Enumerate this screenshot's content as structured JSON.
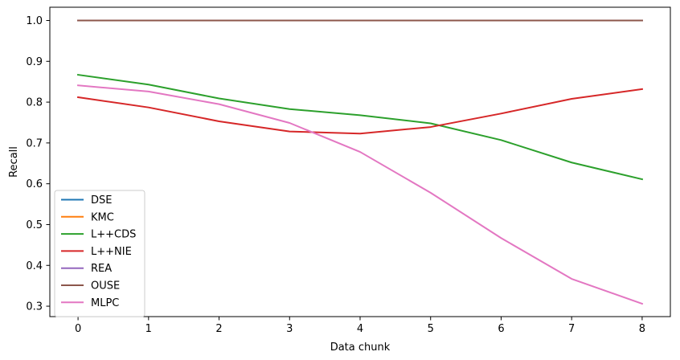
{
  "chart_data": {
    "type": "line",
    "xlabel": "Data chunk",
    "ylabel": "Recall",
    "x": [
      0,
      1,
      2,
      3,
      4,
      5,
      6,
      7,
      8
    ],
    "xticks": [
      "0",
      "1",
      "2",
      "3",
      "4",
      "5",
      "6",
      "7",
      "8"
    ],
    "yticks": [
      "0.3",
      "0.4",
      "0.5",
      "0.6",
      "0.7",
      "0.8",
      "0.9",
      "1.0"
    ],
    "xlim": [
      -0.4,
      8.4
    ],
    "ylim": [
      0.2745,
      1.0325
    ],
    "grid": false,
    "legend_position": "lower-left",
    "series": [
      {
        "name": "DSE",
        "color": "#1f77b4",
        "values": [
          1.0,
          1.0,
          1.0,
          1.0,
          1.0,
          1.0,
          1.0,
          1.0,
          1.0
        ]
      },
      {
        "name": "KMC",
        "color": "#ff7f0e",
        "values": [
          1.0,
          1.0,
          1.0,
          1.0,
          1.0,
          1.0,
          1.0,
          1.0,
          1.0
        ]
      },
      {
        "name": "L++CDS",
        "color": "#2ca02c",
        "values": [
          0.867,
          0.843,
          0.809,
          0.783,
          0.768,
          0.748,
          0.707,
          0.652,
          0.611
        ]
      },
      {
        "name": "L++NIE",
        "color": "#d62728",
        "values": [
          0.812,
          0.787,
          0.753,
          0.728,
          0.723,
          0.739,
          0.772,
          0.808,
          0.832
        ]
      },
      {
        "name": "REA",
        "color": "#9467bd",
        "values": [
          1.0,
          1.0,
          1.0,
          1.0,
          1.0,
          1.0,
          1.0,
          1.0,
          1.0
        ]
      },
      {
        "name": "OUSE",
        "color": "#8c564b",
        "values": [
          1.0,
          1.0,
          1.0,
          1.0,
          1.0,
          1.0,
          1.0,
          1.0,
          1.0
        ]
      },
      {
        "name": "MLPC",
        "color": "#e377c2",
        "values": [
          0.841,
          0.826,
          0.795,
          0.749,
          0.678,
          0.578,
          0.467,
          0.367,
          0.306
        ]
      }
    ]
  }
}
